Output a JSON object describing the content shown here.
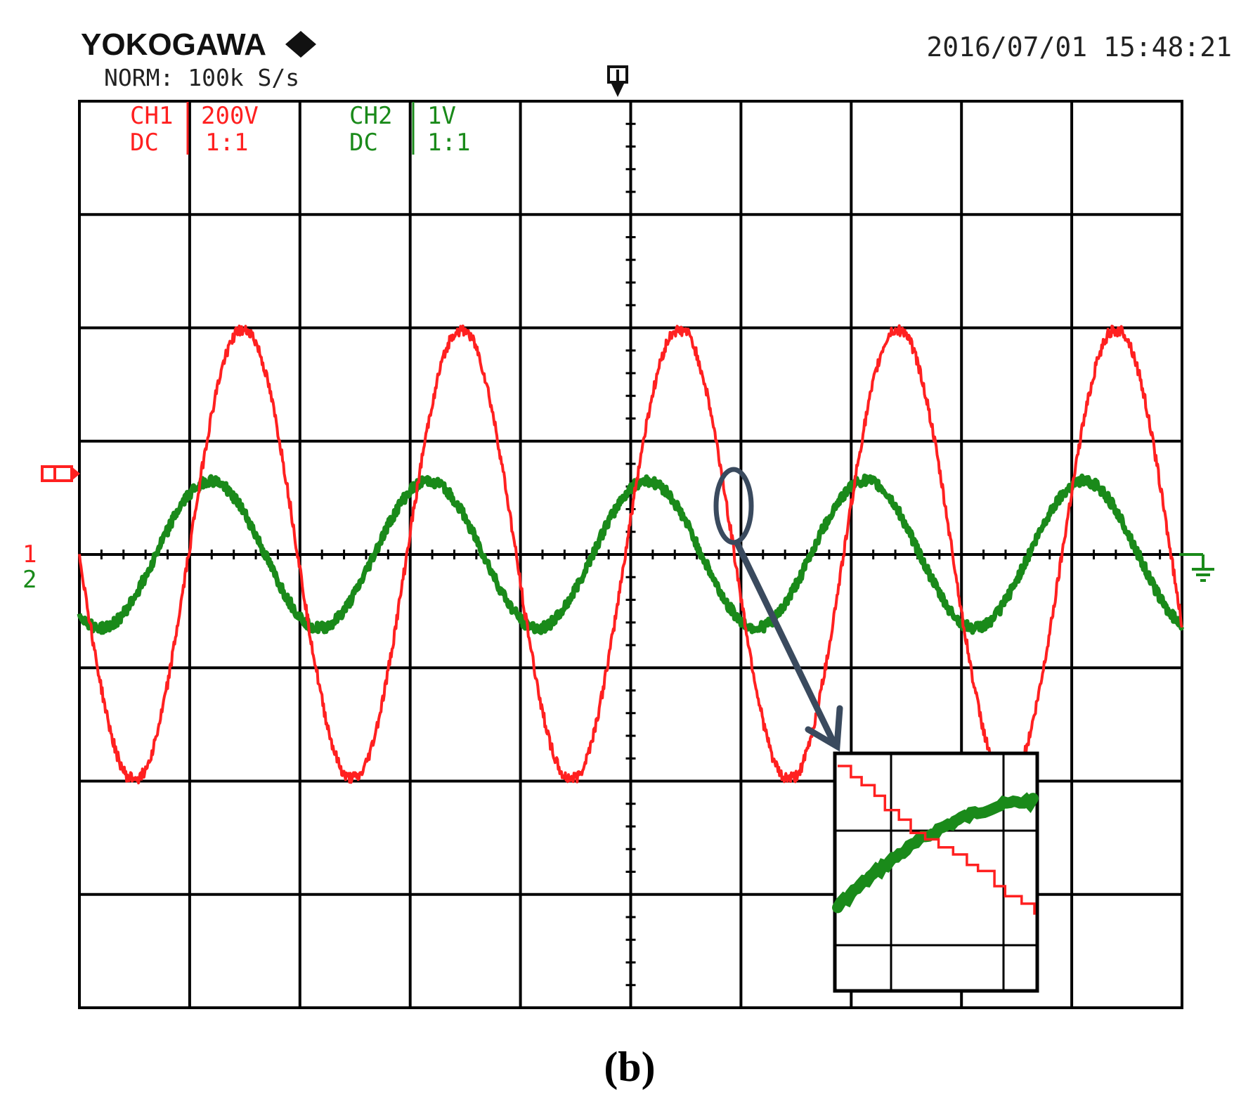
{
  "header": {
    "brand": "YOKOGAWA",
    "mode": "NORM: 100k S/s",
    "timestamp": "2016/07/01 15:48:21"
  },
  "channels": [
    {
      "name": "CH1",
      "scale": "200V",
      "coupling": "DC",
      "probe": "1:1",
      "color": "#ff2020",
      "marker": "1"
    },
    {
      "name": "CH2",
      "scale": "1V",
      "coupling": "DC",
      "probe": "1:1",
      "color": "#1a8a1a",
      "marker": "2"
    }
  ],
  "caption": "(b)",
  "chart_data": {
    "type": "line",
    "title": "",
    "xlabel": "",
    "ylabel": "",
    "grid": true,
    "x_divisions": 10,
    "y_divisions": 8,
    "xlim": [
      0,
      10
    ],
    "ylim": [
      -4,
      4
    ],
    "series": [
      {
        "name": "CH1",
        "color": "#ff2020",
        "amplitude_div": 2.0,
        "period_div": 1.98,
        "phase_cycles": 0.0,
        "offset_div": 0.0
      },
      {
        "name": "CH2",
        "color": "#1a8a1a",
        "amplitude_div": 0.65,
        "period_div": 1.98,
        "phase_cycles": 0.15,
        "offset_div": 0.0
      }
    ]
  }
}
